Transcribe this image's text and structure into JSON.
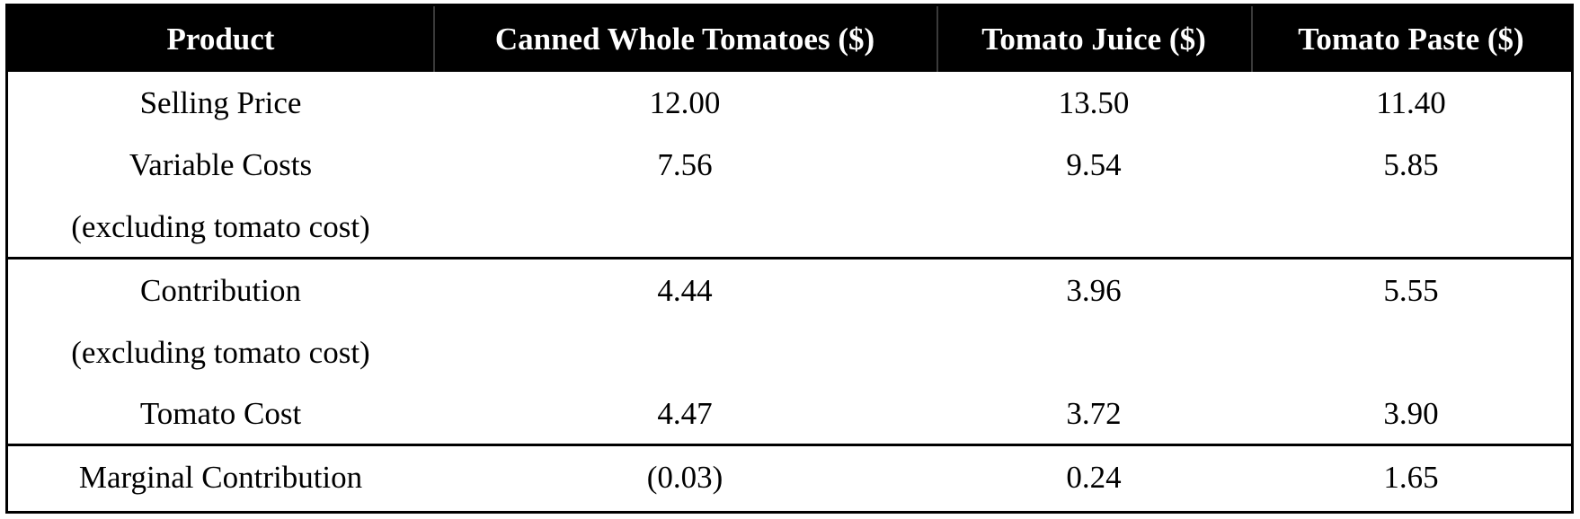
{
  "table": {
    "headers": [
      "Product",
      "Canned Whole Tomatoes ($)",
      "Tomato Juice ($)",
      "Tomato Paste ($)"
    ],
    "rows": [
      [
        "Selling Price",
        "12.00",
        "13.50",
        "11.40"
      ],
      [
        "Variable Costs",
        "7.56",
        "9.54",
        "5.85"
      ],
      [
        "(excluding tomato cost)",
        "",
        "",
        ""
      ],
      [
        "Contribution",
        "4.44",
        "3.96",
        "5.55"
      ],
      [
        "(excluding tomato cost)",
        "",
        "",
        ""
      ],
      [
        "Tomato Cost",
        "4.47",
        "3.72",
        "3.90"
      ],
      [
        "Marginal Contribution",
        "(0.03)",
        "0.24",
        "1.65"
      ]
    ]
  }
}
